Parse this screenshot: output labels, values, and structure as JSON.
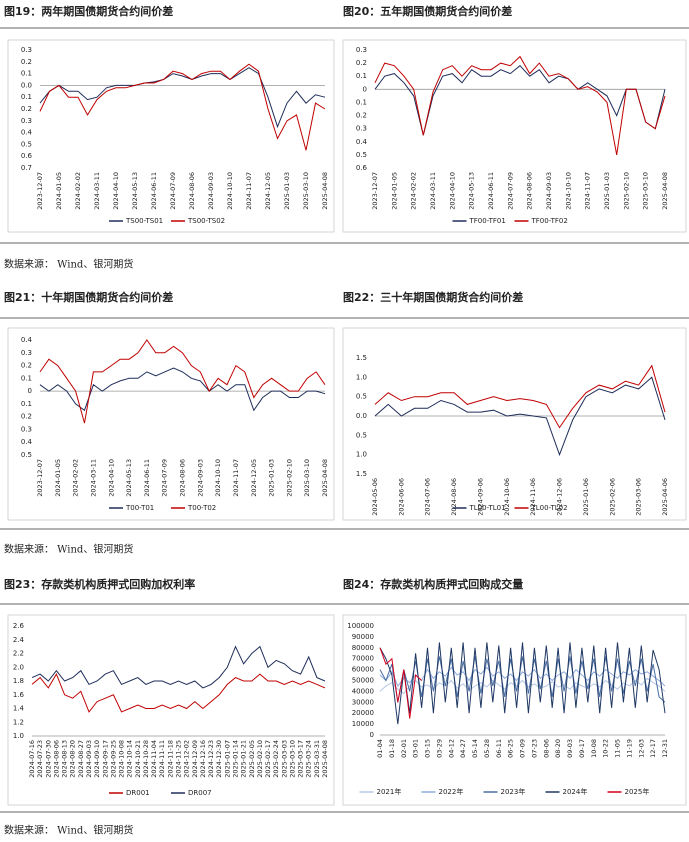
{
  "chart_data": [
    {
      "type": "line",
      "title": "图19：两年期国债期货合约间价差",
      "categories": [
        "2023-12-07",
        null,
        "2024-01-05",
        null,
        "2024-02-02",
        null,
        "2024-03-11",
        null,
        "2024-04-10",
        null,
        "2024-05-13",
        null,
        "2024-06-11",
        null,
        "2024-07-09",
        null,
        "2024-08-06",
        null,
        "2024-09-03",
        null,
        "2024-10-10",
        null,
        "2024-11-07",
        null,
        "2024-12-05",
        null,
        "2025-01-03",
        null,
        "2025-03-10",
        null,
        "2025-04-08"
      ],
      "series": [
        {
          "name": "TS00-TS01",
          "color": "#1f2d5a",
          "values": [
            -0.15,
            -0.05,
            0.0,
            -0.05,
            -0.05,
            -0.12,
            -0.1,
            -0.02,
            0.0,
            0.0,
            0.0,
            0.02,
            0.03,
            0.05,
            0.1,
            0.08,
            0.05,
            0.08,
            0.1,
            0.1,
            0.05,
            0.1,
            0.15,
            0.1,
            -0.1,
            -0.35,
            -0.15,
            -0.05,
            -0.15,
            -0.08,
            -0.1
          ]
        },
        {
          "name": "TS00-TS02",
          "color": "#c00000",
          "values": [
            -0.22,
            -0.05,
            0.0,
            -0.1,
            -0.1,
            -0.25,
            -0.12,
            -0.05,
            -0.02,
            -0.02,
            0.0,
            0.02,
            0.02,
            0.05,
            0.12,
            0.1,
            0.05,
            0.1,
            0.12,
            0.12,
            0.05,
            0.12,
            0.18,
            0.12,
            -0.2,
            -0.45,
            -0.3,
            -0.25,
            -0.55,
            -0.15,
            -0.2
          ]
        }
      ],
      "ylim": [
        -0.7,
        0.3
      ],
      "yticks": [
        0.3,
        0.2,
        0.1,
        {
          "value": 0,
          "label": "0.0"
        },
        {
          "value": -0.1,
          "label": "0.1"
        },
        {
          "value": -0.2,
          "label": "0.2"
        },
        {
          "value": -0.3,
          "label": "0.3"
        },
        {
          "value": -0.4,
          "label": "0.4"
        },
        {
          "value": -0.5,
          "label": "0.5"
        },
        {
          "value": -0.6,
          "label": "0.6"
        },
        {
          "value": -0.7,
          "label": "0.7"
        }
      ],
      "grid": false
    },
    {
      "type": "line",
      "title": "图20：五年期国债期货合约间价差",
      "categories": [
        "2023-12-07",
        null,
        "2024-01-05",
        null,
        "2024-02-02",
        null,
        "2024-03-11",
        null,
        "2024-04-10",
        null,
        "2024-05-13",
        null,
        "2024-06-11",
        null,
        "2024-07-09",
        null,
        "2024-08-06",
        null,
        "2024-09-03",
        null,
        "2024-10-10",
        null,
        "2024-11-07",
        null,
        "2025-01-03",
        null,
        "2025-02-10",
        null,
        "2025-03-10",
        null,
        "2025-04-08"
      ],
      "series": [
        {
          "name": "TF00-TF01",
          "color": "#1f2d5a",
          "values": [
            0.0,
            0.1,
            0.12,
            0.05,
            -0.05,
            -0.35,
            -0.05,
            0.1,
            0.12,
            0.05,
            0.15,
            0.1,
            0.1,
            0.15,
            0.12,
            0.18,
            0.1,
            0.15,
            0.05,
            0.1,
            0.08,
            0.0,
            0.05,
            0.0,
            -0.05,
            -0.2,
            0.0,
            0.0,
            -0.25,
            -0.3,
            0.0
          ]
        },
        {
          "name": "TF00-TF02",
          "color": "#c00000",
          "values": [
            0.05,
            0.2,
            0.18,
            0.1,
            0.0,
            -0.35,
            -0.02,
            0.15,
            0.18,
            0.1,
            0.18,
            0.15,
            0.15,
            0.2,
            0.18,
            0.25,
            0.12,
            0.2,
            0.1,
            0.12,
            0.08,
            0.0,
            0.02,
            -0.02,
            -0.1,
            -0.5,
            0.0,
            0.0,
            -0.25,
            -0.3,
            -0.05
          ]
        }
      ],
      "ylim": [
        -0.6,
        0.3
      ],
      "yticks": [
        0.3,
        0.2,
        0.1,
        0,
        {
          "value": -0.1,
          "label": "0.1"
        },
        {
          "value": -0.2,
          "label": "0.2"
        },
        {
          "value": -0.3,
          "label": "0.3"
        },
        {
          "value": -0.4,
          "label": "0.4"
        },
        {
          "value": -0.5,
          "label": "0.5"
        },
        {
          "value": -0.6,
          "label": "0.6"
        }
      ],
      "grid": false
    },
    {
      "type": "line",
      "title": "图21：十年期国债期货合约间价差",
      "categories": [
        "2023-12-07",
        null,
        "2024-01-05",
        null,
        "2024-02-02",
        null,
        "2024-03-11",
        null,
        "2024-04-10",
        null,
        "2024-05-13",
        null,
        "2024-06-11",
        null,
        "2024-07-09",
        null,
        "2024-08-06",
        null,
        "2024-09-03",
        null,
        "2024-10-10",
        null,
        "2024-11-07",
        null,
        "2024-12-05",
        null,
        "2025-01-03",
        null,
        "2025-02-10",
        null,
        "2025-03-10",
        null,
        "2025-04-08"
      ],
      "series": [
        {
          "name": "T00-T01",
          "color": "#1f2d5a",
          "values": [
            0.05,
            0.0,
            0.05,
            0.0,
            -0.1,
            -0.15,
            0.05,
            0.0,
            0.05,
            0.08,
            0.1,
            0.1,
            0.15,
            0.12,
            0.15,
            0.18,
            0.15,
            0.1,
            0.08,
            0.0,
            0.05,
            0.0,
            0.05,
            0.05,
            -0.15,
            -0.05,
            0.0,
            0.0,
            -0.05,
            -0.05,
            0.0,
            0.0,
            -0.02
          ]
        },
        {
          "name": "T00-T02",
          "color": "#c00000",
          "values": [
            0.15,
            0.25,
            0.2,
            0.1,
            0.0,
            -0.25,
            0.15,
            0.15,
            0.2,
            0.25,
            0.25,
            0.3,
            0.4,
            0.3,
            0.3,
            0.35,
            0.3,
            0.2,
            0.15,
            0.0,
            0.1,
            0.05,
            0.2,
            0.15,
            -0.05,
            0.05,
            0.1,
            0.05,
            0.0,
            0.0,
            0.1,
            0.15,
            0.05
          ]
        }
      ],
      "ylim": [
        -0.5,
        0.4
      ],
      "yticks": [
        0.4,
        0.3,
        0.2,
        0.1,
        0,
        {
          "value": -0.1,
          "label": "0.1"
        },
        {
          "value": -0.2,
          "label": "0.2"
        },
        {
          "value": -0.3,
          "label": "0.3"
        },
        {
          "value": -0.4,
          "label": "0.4"
        },
        {
          "value": -0.5,
          "label": "0.5"
        }
      ],
      "grid": false
    },
    {
      "type": "line",
      "title": "图22：三十年期国债期货合约间价差",
      "categories": [
        "2024-05-06",
        null,
        "2024-06-06",
        null,
        "2024-07-06",
        null,
        "2024-08-06",
        null,
        "2024-09-06",
        null,
        "2024-10-06",
        null,
        "2024-11-06",
        null,
        "2024-12-06",
        null,
        "2025-01-06",
        null,
        "2025-02-06",
        null,
        "2025-03-06",
        null,
        "2025-04-06"
      ],
      "series": [
        {
          "name": "TL00-TL01",
          "color": "#1f2d5a",
          "values": [
            0.0,
            0.3,
            0.0,
            0.2,
            0.2,
            0.4,
            0.3,
            0.1,
            0.1,
            0.15,
            0.0,
            0.05,
            0.0,
            -0.05,
            -1.0,
            -0.1,
            0.5,
            0.7,
            0.6,
            0.8,
            0.7,
            1.0,
            -0.1
          ]
        },
        {
          "name": "TL00-TL02",
          "color": "#c00000",
          "values": [
            0.3,
            0.6,
            0.4,
            0.5,
            0.5,
            0.6,
            0.6,
            0.3,
            0.4,
            0.5,
            0.4,
            0.45,
            0.4,
            0.3,
            -0.3,
            0.2,
            0.6,
            0.8,
            0.7,
            0.9,
            0.8,
            1.3,
            0.1
          ]
        }
      ],
      "ylim": [
        -1.5,
        1.5
      ],
      "yticks": [
        1.5,
        {
          "value": 1,
          "label": "1.0"
        },
        0.5,
        {
          "value": 0,
          "label": "0.0"
        },
        {
          "value": -0.5,
          "label": "0.5"
        },
        {
          "value": -1,
          "label": "1.0"
        },
        {
          "value": -1.5,
          "label": "1.5"
        }
      ],
      "grid": false
    },
    {
      "type": "line",
      "title": "图23：存款类机构质押式回购加权利率",
      "categories": [
        "2024-07-16",
        "2024-07-23",
        "2024-07-30",
        "2024-08-06",
        "2024-08-13",
        "2024-08-20",
        "2024-08-27",
        "2024-09-03",
        "2024-09-10",
        "2024-09-17",
        "2024-09-25",
        "2024-10-08",
        "2024-10-14",
        "2024-10-21",
        "2024-10-28",
        "2024-11-04",
        "2024-11-11",
        "2024-11-18",
        "2024-11-25",
        "2024-12-02",
        "2024-12-09",
        "2024-12-16",
        "2024-12-23",
        "2024-12-30",
        "2025-01-07",
        "2025-01-14",
        "2025-01-21",
        "2025-02-05",
        "2025-02-10",
        "2025-02-17",
        "2025-02-24",
        "2025-03-03",
        "2025-03-10",
        "2025-03-17",
        "2025-03-24",
        "2025-03-31",
        "2025-04-08"
      ],
      "series": [
        {
          "name": "DR001",
          "color": "#c00000",
          "values": [
            1.75,
            1.85,
            1.7,
            1.9,
            1.6,
            1.55,
            1.65,
            1.35,
            1.5,
            1.55,
            1.6,
            1.35,
            1.4,
            1.45,
            1.4,
            1.4,
            1.45,
            1.4,
            1.45,
            1.4,
            1.5,
            1.4,
            1.5,
            1.6,
            1.75,
            1.85,
            1.8,
            1.8,
            1.9,
            1.8,
            1.8,
            1.75,
            1.8,
            1.75,
            1.8,
            1.75,
            1.7
          ]
        },
        {
          "name": "DR007",
          "color": "#1f2d5a",
          "values": [
            1.85,
            1.9,
            1.8,
            1.95,
            1.8,
            1.85,
            1.95,
            1.75,
            1.8,
            1.9,
            1.95,
            1.75,
            1.8,
            1.85,
            1.75,
            1.8,
            1.8,
            1.75,
            1.8,
            1.75,
            1.8,
            1.7,
            1.75,
            1.85,
            2.0,
            2.3,
            2.05,
            2.2,
            2.3,
            2.0,
            2.1,
            2.05,
            1.95,
            1.9,
            2.15,
            1.85,
            1.8
          ]
        }
      ],
      "ylim": [
        1.0,
        2.6
      ],
      "yticks": [
        {
          "value": 1,
          "label": "1.0"
        },
        1.2,
        1.4,
        1.6,
        1.8,
        {
          "value": 2,
          "label": "2.0"
        },
        2.2,
        2.4,
        2.6
      ],
      "grid": false
    },
    {
      "type": "line",
      "title": "图24：存款类机构质押式回购成交量",
      "categories": [
        "01-04",
        null,
        "01-18",
        null,
        "02-01",
        null,
        "03-01",
        null,
        "03-15",
        null,
        "03-29",
        null,
        "04-12",
        null,
        "04-27",
        null,
        "05-14",
        null,
        "05-28",
        null,
        "06-11",
        null,
        "06-25",
        null,
        "07-09",
        null,
        "07-23",
        null,
        "08-06",
        null,
        "08-20",
        null,
        "09-03",
        null,
        "09-17",
        null,
        "10-08",
        null,
        "10-22",
        null,
        "11-05",
        null,
        "11-19",
        null,
        "12-03",
        null,
        "12-17",
        null,
        "12-31"
      ],
      "series": [
        {
          "name": "2021年",
          "color": "#b4c7e7",
          "values": [
            40000,
            45000,
            48000,
            42000,
            38000,
            45000,
            50000,
            44000,
            46000,
            42000,
            48000,
            45000,
            50000,
            43000,
            47000,
            41000,
            45000,
            48000,
            44000,
            50000,
            46000,
            42000,
            48000,
            45000,
            50000,
            44000,
            47000,
            43000,
            45000,
            49000,
            44000,
            46000,
            42000,
            48000,
            45000,
            43000,
            47000,
            44000,
            50000,
            46000,
            42000,
            48000,
            45000,
            50000,
            46000,
            52000,
            48000,
            45000,
            40000
          ]
        },
        {
          "name": "2022年",
          "color": "#8faadc",
          "values": [
            55000,
            50000,
            58000,
            45000,
            52000,
            48000,
            55000,
            50000,
            60000,
            52000,
            58000,
            54000,
            62000,
            55000,
            58000,
            50000,
            60000,
            56000,
            62000,
            54000,
            58000,
            52000,
            56000,
            50000,
            58000,
            54000,
            60000,
            52000,
            56000,
            50000,
            55000,
            58000,
            52000,
            60000,
            55000,
            50000,
            58000,
            54000,
            60000,
            56000,
            52000,
            58000,
            55000,
            60000,
            56000,
            58000,
            54000,
            50000,
            45000
          ]
        },
        {
          "name": "2023年",
          "color": "#4a6fa5",
          "values": [
            60000,
            50000,
            65000,
            30000,
            60000,
            40000,
            68000,
            35000,
            70000,
            40000,
            72000,
            45000,
            70000,
            35000,
            68000,
            40000,
            72000,
            38000,
            70000,
            45000,
            68000,
            35000,
            70000,
            40000,
            72000,
            38000,
            70000,
            42000,
            68000,
            35000,
            70000,
            40000,
            72000,
            38000,
            68000,
            42000,
            70000,
            35000,
            72000,
            40000,
            70000,
            38000,
            68000,
            45000,
            70000,
            40000,
            65000,
            35000,
            30000
          ]
        },
        {
          "name": "2024年",
          "color": "#1f3864",
          "values": [
            80000,
            70000,
            55000,
            10000,
            60000,
            20000,
            75000,
            25000,
            80000,
            20000,
            85000,
            30000,
            80000,
            25000,
            85000,
            20000,
            80000,
            25000,
            85000,
            30000,
            82000,
            20000,
            80000,
            25000,
            85000,
            20000,
            80000,
            30000,
            82000,
            25000,
            80000,
            20000,
            85000,
            25000,
            80000,
            30000,
            82000,
            20000,
            80000,
            25000,
            85000,
            30000,
            80000,
            25000,
            82000,
            30000,
            78000,
            60000,
            20000
          ]
        },
        {
          "name": "2025年",
          "color": "#d6001c",
          "values": [
            80000,
            65000,
            70000,
            30000,
            60000,
            15000,
            55000,
            50000,
            null,
            null,
            null,
            null,
            null,
            null,
            null,
            null,
            null,
            null,
            null,
            null,
            null,
            null,
            null,
            null,
            null,
            null,
            null,
            null,
            null,
            null,
            null,
            null,
            null,
            null,
            null,
            null,
            null,
            null,
            null,
            null,
            null,
            null,
            null,
            null,
            null,
            null,
            null,
            null,
            null
          ]
        }
      ],
      "ylim": [
        0,
        100000
      ],
      "yticks": [
        0,
        10000,
        20000,
        30000,
        40000,
        50000,
        60000,
        70000,
        80000,
        90000,
        100000
      ],
      "grid": false
    }
  ],
  "notes": [
    "数据来源：  Wind、银河期货",
    "数据来源：  Wind、银河期货",
    "数据来源：  Wind、银河期货"
  ]
}
